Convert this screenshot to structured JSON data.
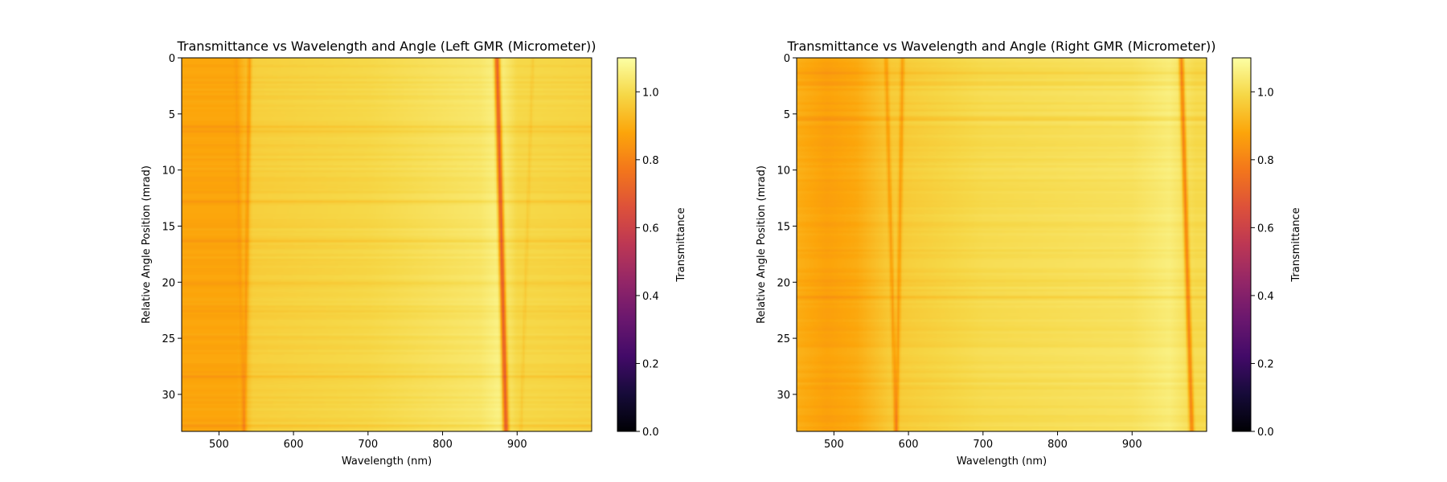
{
  "chart_data": [
    {
      "type": "heatmap",
      "title": "Transmittance vs Wavelength and Angle (Left GMR (Micrometer))",
      "xlabel": "Wavelength (nm)",
      "ylabel": "Relative Angle Position (mrad)",
      "xlim": [
        450,
        1000
      ],
      "ylim": [
        33.3,
        0
      ],
      "xticks": [
        500,
        600,
        700,
        800,
        900
      ],
      "yticks": [
        0,
        5,
        10,
        15,
        20,
        25,
        30
      ],
      "colorbar": {
        "label": "Transmittance",
        "range": [
          0.0,
          1.1
        ],
        "ticks": [
          0.0,
          0.2,
          0.4,
          0.6,
          0.8,
          1.0
        ],
        "colormap": "inferno"
      },
      "background": [
        {
          "x": 450,
          "value": 0.88
        },
        {
          "x": 525,
          "value": 0.88
        },
        {
          "x": 545,
          "value": 0.97
        },
        {
          "x": 700,
          "value": 0.99
        },
        {
          "x": 850,
          "value": 1.03
        },
        {
          "x": 875,
          "value": 1.06
        },
        {
          "x": 900,
          "value": 0.99
        },
        {
          "x": 1000,
          "value": 0.98
        }
      ],
      "resonances": [
        {
          "x_top": 523,
          "x_bottom": 533,
          "min_value": 0.86,
          "width": 2.5
        },
        {
          "x_top": 541,
          "x_bottom": 534,
          "min_value": 0.85,
          "width": 2.5
        },
        {
          "x_top": 873,
          "x_bottom": 885,
          "min_value": 0.7,
          "width": 3.5
        },
        {
          "x_top": 921,
          "x_bottom": 905,
          "min_value": 0.96,
          "width": 2.0
        }
      ]
    },
    {
      "type": "heatmap",
      "title": "Transmittance vs Wavelength and Angle (Right GMR (Micrometer))",
      "xlabel": "Wavelength (nm)",
      "ylabel": "Relative Angle Position (mrad)",
      "xlim": [
        450,
        1000
      ],
      "ylim": [
        33.3,
        0
      ],
      "xticks": [
        500,
        600,
        700,
        800,
        900
      ],
      "yticks": [
        0,
        5,
        10,
        15,
        20,
        25,
        30
      ],
      "colorbar": {
        "label": "Transmittance",
        "range": [
          0.0,
          1.1
        ],
        "ticks": [
          0.0,
          0.2,
          0.4,
          0.6,
          0.8,
          1.0
        ],
        "colormap": "inferno"
      },
      "background": [
        {
          "x": 450,
          "value": 0.9
        },
        {
          "x": 490,
          "value": 0.87
        },
        {
          "x": 530,
          "value": 0.89
        },
        {
          "x": 575,
          "value": 0.96
        },
        {
          "x": 700,
          "value": 1.0
        },
        {
          "x": 900,
          "value": 1.02
        },
        {
          "x": 950,
          "value": 1.05
        },
        {
          "x": 985,
          "value": 1.0
        },
        {
          "x": 1000,
          "value": 1.0
        }
      ],
      "resonances": [
        {
          "x_top": 570,
          "x_bottom": 583,
          "min_value": 0.86,
          "width": 2.5
        },
        {
          "x_top": 592,
          "x_bottom": 584,
          "min_value": 0.86,
          "width": 2.5
        },
        {
          "x_top": 966,
          "x_bottom": 980,
          "min_value": 0.8,
          "width": 3.0
        }
      ]
    }
  ]
}
